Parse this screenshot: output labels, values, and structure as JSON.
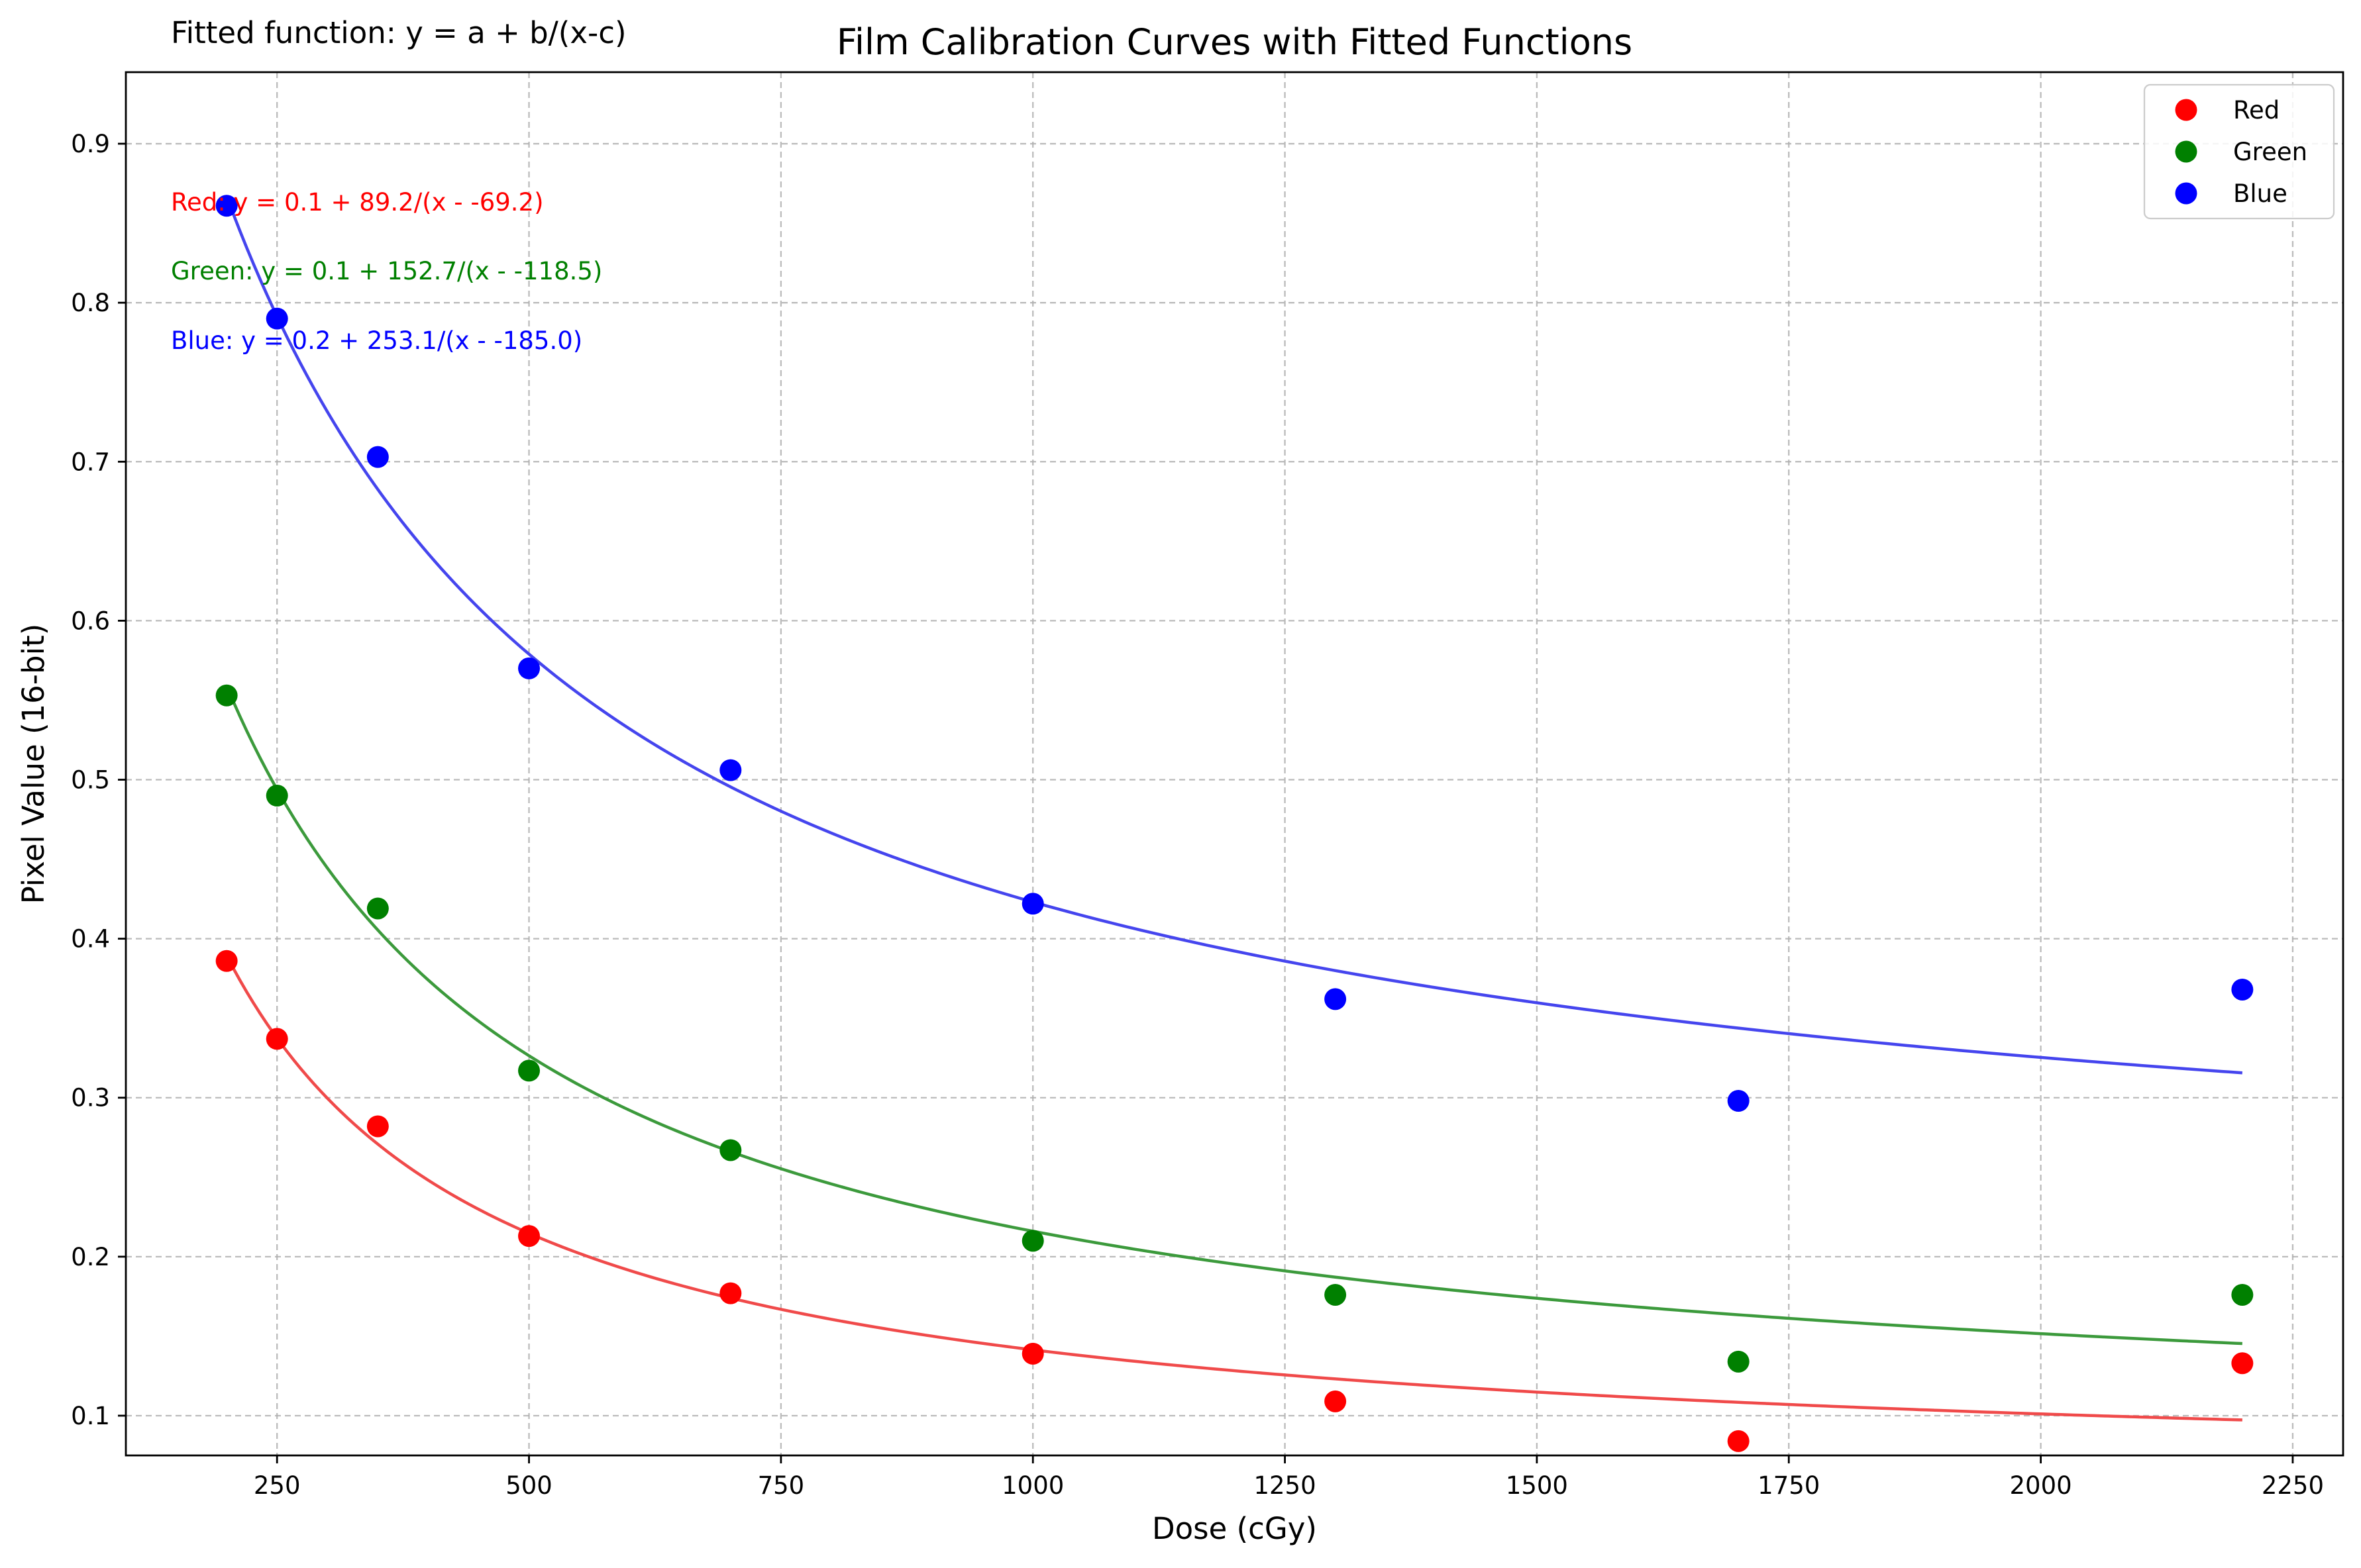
{
  "chart_data": {
    "type": "scatter",
    "title": "Film Calibration Curves with Fitted Functions",
    "xlabel": "Dose (cGy)",
    "ylabel": "Pixel Value (16-bit)",
    "xlim": [
      100,
      2300
    ],
    "ylim": [
      0.075,
      0.945
    ],
    "x_ticks": [
      250,
      500,
      750,
      1000,
      1250,
      1500,
      1750,
      2000,
      2250
    ],
    "x_tick_labels": [
      "250",
      "500",
      "750",
      "1000",
      "1250",
      "1500",
      "1750",
      "2000",
      "2250"
    ],
    "y_ticks": [
      0.1,
      0.2,
      0.3,
      0.4,
      0.5,
      0.6,
      0.7,
      0.8,
      0.9
    ],
    "y_tick_labels": [
      "0.1",
      "0.2",
      "0.3",
      "0.4",
      "0.5",
      "0.6",
      "0.7",
      "0.8",
      "0.9"
    ],
    "grid": true,
    "legend_position": "upper right",
    "fit_function_note": "Fitted function: y = a + b/(x-c)",
    "x": [
      200,
      250,
      350,
      500,
      700,
      1000,
      1300,
      1700,
      2200
    ],
    "series": [
      {
        "name": "Red",
        "color": "#ff0000",
        "line_color": "#f04a4a",
        "values": [
          0.386,
          0.337,
          0.282,
          0.213,
          0.177,
          0.139,
          0.109,
          0.084,
          0.133
        ],
        "fit": {
          "a": 0.058,
          "b": 89.2,
          "c": -69.2
        },
        "equation": "Red: y = 0.1 + 89.2/(x - -69.2)"
      },
      {
        "name": "Green",
        "color": "#008000",
        "line_color": "#3c9a3c",
        "values": [
          0.553,
          0.49,
          0.419,
          0.317,
          0.267,
          0.21,
          0.176,
          0.134,
          0.176
        ],
        "fit": {
          "a": 0.0795,
          "b": 152.7,
          "c": -118.5
        },
        "equation": "Green: y = 0.1 + 152.7/(x - -118.5)"
      },
      {
        "name": "Blue",
        "color": "#0000ff",
        "line_color": "#4545ee",
        "values": [
          0.861,
          0.79,
          0.703,
          0.57,
          0.506,
          0.422,
          0.362,
          0.298,
          0.368
        ],
        "fit": {
          "a": 0.2095,
          "b": 253.1,
          "c": -185.0
        },
        "equation": "Blue: y = 0.2 + 253.1/(x - -185.0)"
      }
    ]
  }
}
